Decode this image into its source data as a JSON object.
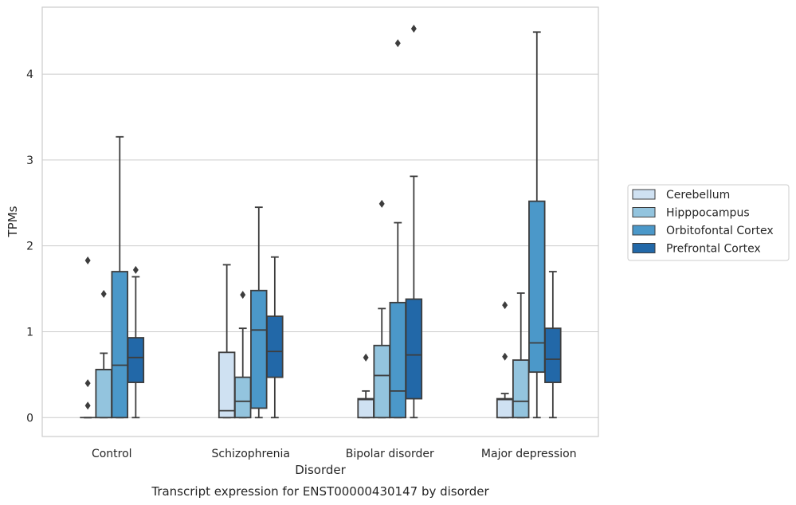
{
  "chart_data": {
    "type": "box",
    "xlabel": "Disorder",
    "ylabel": "TPMs",
    "caption": "Transcript expression for ENST00000430147 by disorder",
    "categories": [
      "Control",
      "Schizophrenia",
      "Bipolar disorder",
      "Major depression"
    ],
    "yticks": [
      "0",
      "1",
      "2",
      "3",
      "4"
    ],
    "ylim": [
      -0.22,
      4.78
    ],
    "grid": "horizontal",
    "legend_position": "right",
    "series": [
      {
        "name": "Cerebellum",
        "color": "#cfe1f2",
        "boxes": [
          {
            "min": 0,
            "q1": 0,
            "median": 0,
            "q3": 0,
            "max": 0,
            "outliers": [
              0.14,
              0.4,
              1.83
            ]
          },
          {
            "min": 0,
            "q1": 0,
            "median": 0.08,
            "q3": 0.76,
            "max": 1.78,
            "outliers": []
          },
          {
            "min": 0,
            "q1": 0,
            "median": 0.21,
            "q3": 0.22,
            "max": 0.31,
            "outliers": [
              0.7
            ]
          },
          {
            "min": 0,
            "q1": 0,
            "median": 0.21,
            "q3": 0.22,
            "max": 0.28,
            "outliers": [
              0.71,
              1.31
            ]
          }
        ]
      },
      {
        "name": "Hipppocampus",
        "color": "#93c4de",
        "boxes": [
          {
            "min": 0,
            "q1": 0,
            "median": 0.56,
            "q3": 0.56,
            "max": 0.75,
            "outliers": [
              1.44
            ]
          },
          {
            "min": 0,
            "q1": 0,
            "median": 0.19,
            "q3": 0.47,
            "max": 1.04,
            "outliers": [
              1.43
            ]
          },
          {
            "min": 0,
            "q1": 0,
            "median": 0.49,
            "q3": 0.84,
            "max": 1.27,
            "outliers": [
              2.49
            ]
          },
          {
            "min": 0,
            "q1": 0,
            "median": 0.19,
            "q3": 0.67,
            "max": 1.45,
            "outliers": []
          }
        ]
      },
      {
        "name": "Orbitofontal Cortex",
        "color": "#4b98c9",
        "boxes": [
          {
            "min": 0,
            "q1": 0,
            "median": 0.61,
            "q3": 1.7,
            "max": 3.27,
            "outliers": []
          },
          {
            "min": 0,
            "q1": 0.11,
            "median": 1.02,
            "q3": 1.48,
            "max": 2.45,
            "outliers": []
          },
          {
            "min": 0,
            "q1": 0,
            "median": 0.31,
            "q3": 1.34,
            "max": 2.27,
            "outliers": [
              4.36
            ]
          },
          {
            "min": 0,
            "q1": 0.53,
            "median": 0.87,
            "q3": 2.52,
            "max": 4.49,
            "outliers": []
          }
        ]
      },
      {
        "name": "Prefrontal Cortex",
        "color": "#2268a8",
        "boxes": [
          {
            "min": 0,
            "q1": 0.41,
            "median": 0.7,
            "q3": 0.93,
            "max": 1.64,
            "outliers": [
              1.72
            ]
          },
          {
            "min": 0,
            "q1": 0.47,
            "median": 0.77,
            "q3": 1.18,
            "max": 1.87,
            "outliers": []
          },
          {
            "min": 0,
            "q1": 0.22,
            "median": 0.73,
            "q3": 1.38,
            "max": 2.81,
            "outliers": [
              4.53
            ]
          },
          {
            "min": 0,
            "q1": 0.41,
            "median": 0.68,
            "q3": 1.04,
            "max": 1.7,
            "outliers": []
          }
        ]
      }
    ]
  }
}
